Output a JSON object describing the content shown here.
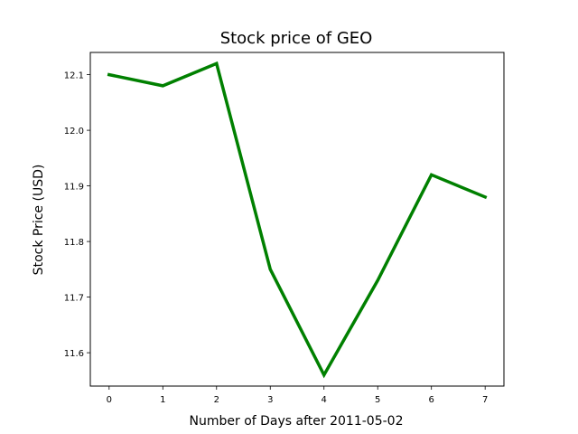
{
  "chart_data": {
    "type": "line",
    "title": "Stock price of GEO",
    "xlabel": "Number of Days after 2011-05-02",
    "ylabel": "Stock Price (USD)",
    "x": [
      0,
      1,
      2,
      3,
      4,
      5,
      6,
      7
    ],
    "x_ticks": [
      "0",
      "1",
      "2",
      "3",
      "4",
      "5",
      "6",
      "7"
    ],
    "y_ticks": [
      "11.6",
      "11.7",
      "11.8",
      "11.9",
      "12.0",
      "12.1"
    ],
    "xlim": [
      -0.35,
      7.35
    ],
    "ylim": [
      11.54,
      12.14
    ],
    "grid": false,
    "series": [
      {
        "values": [
          12.1,
          12.08,
          12.12,
          11.75,
          11.56,
          11.73,
          11.92,
          11.88
        ],
        "color": "#008000"
      }
    ]
  }
}
